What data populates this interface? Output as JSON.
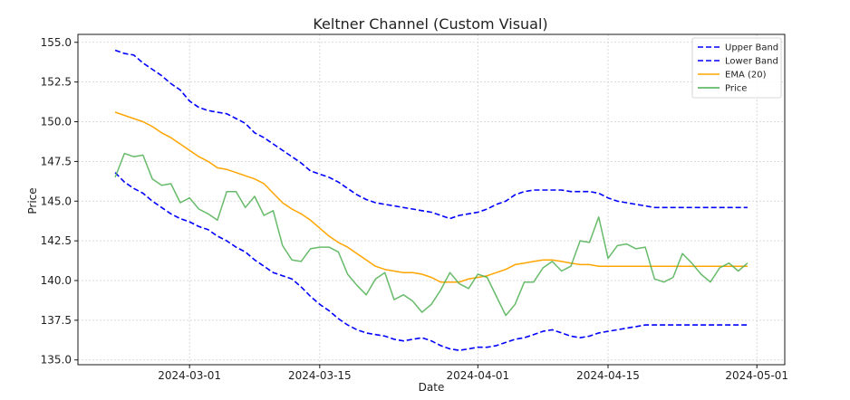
{
  "chart_data": {
    "type": "line",
    "title": "Keltner Channel (Custom Visual)",
    "xlabel": "Date",
    "ylabel": "Price",
    "x_range": [
      "2024-02-18",
      "2024-05-04"
    ],
    "ylim": [
      134.7,
      155.5
    ],
    "x_ticks": [
      "2024-03-01",
      "2024-03-15",
      "2024-04-01",
      "2024-04-15",
      "2024-05-01"
    ],
    "y_ticks": [
      135.0,
      137.5,
      140.0,
      142.5,
      145.0,
      147.5,
      150.0,
      152.5,
      155.0
    ],
    "grid": true,
    "legend_position": "top-right",
    "dates": [
      "2024-02-22",
      "2024-02-23",
      "2024-02-24",
      "2024-02-25",
      "2024-02-26",
      "2024-02-27",
      "2024-02-28",
      "2024-02-29",
      "2024-03-01",
      "2024-03-02",
      "2024-03-03",
      "2024-03-04",
      "2024-03-05",
      "2024-03-06",
      "2024-03-07",
      "2024-03-08",
      "2024-03-09",
      "2024-03-10",
      "2024-03-11",
      "2024-03-12",
      "2024-03-13",
      "2024-03-14",
      "2024-03-15",
      "2024-03-16",
      "2024-03-17",
      "2024-03-18",
      "2024-03-19",
      "2024-03-20",
      "2024-03-21",
      "2024-03-22",
      "2024-03-23",
      "2024-03-24",
      "2024-03-25",
      "2024-03-26",
      "2024-03-27",
      "2024-03-28",
      "2024-03-29",
      "2024-03-30",
      "2024-03-31",
      "2024-04-01",
      "2024-04-02",
      "2024-04-03",
      "2024-04-04",
      "2024-04-05",
      "2024-04-06",
      "2024-04-07",
      "2024-04-08",
      "2024-04-09",
      "2024-04-10",
      "2024-04-11",
      "2024-04-12",
      "2024-04-13",
      "2024-04-14",
      "2024-04-15",
      "2024-04-16",
      "2024-04-17",
      "2024-04-18",
      "2024-04-19",
      "2024-04-20",
      "2024-04-21",
      "2024-04-22",
      "2024-04-23",
      "2024-04-24",
      "2024-04-25",
      "2024-04-26",
      "2024-04-27",
      "2024-04-28",
      "2024-04-29",
      "2024-04-30"
    ],
    "series": [
      {
        "name": "Upper Band",
        "color": "#0000ff",
        "style": "dashed",
        "values": [
          154.5,
          154.3,
          154.2,
          153.7,
          153.3,
          152.9,
          152.4,
          152.0,
          151.3,
          150.9,
          150.7,
          150.6,
          150.5,
          150.2,
          149.9,
          149.3,
          149.0,
          148.6,
          148.2,
          147.8,
          147.4,
          146.9,
          146.7,
          146.5,
          146.2,
          145.8,
          145.4,
          145.1,
          144.9,
          144.8,
          144.7,
          144.6,
          144.5,
          144.4,
          144.3,
          144.1,
          143.9,
          144.1,
          144.2,
          144.3,
          144.5,
          144.8,
          145.0,
          145.4,
          145.6,
          145.7,
          145.7,
          145.7,
          145.7,
          145.6,
          145.6,
          145.6,
          145.5,
          145.2,
          145.0,
          144.9,
          144.8,
          144.7,
          144.6,
          144.6,
          144.6,
          144.6,
          144.6,
          144.6,
          144.6,
          144.6,
          144.6,
          144.6,
          144.6
        ]
      },
      {
        "name": "Lower Band",
        "color": "#0000ff",
        "style": "dashed",
        "values": [
          146.8,
          146.2,
          145.8,
          145.5,
          145.0,
          144.6,
          144.2,
          143.9,
          143.7,
          143.4,
          143.2,
          142.8,
          142.5,
          142.1,
          141.8,
          141.3,
          140.9,
          140.5,
          140.3,
          140.1,
          139.6,
          139.0,
          138.5,
          138.1,
          137.6,
          137.2,
          136.9,
          136.7,
          136.6,
          136.5,
          136.3,
          136.2,
          136.3,
          136.4,
          136.2,
          135.9,
          135.7,
          135.6,
          135.7,
          135.8,
          135.8,
          135.9,
          136.1,
          136.3,
          136.4,
          136.6,
          136.8,
          136.9,
          136.7,
          136.5,
          136.4,
          136.5,
          136.7,
          136.8,
          136.9,
          137.0,
          137.1,
          137.2,
          137.2,
          137.2,
          137.2,
          137.2,
          137.2,
          137.2,
          137.2,
          137.2,
          137.2,
          137.2,
          137.2
        ]
      },
      {
        "name": "EMA (20)",
        "color": "#ffa500",
        "style": "solid",
        "values": [
          150.6,
          150.4,
          150.2,
          150.0,
          149.7,
          149.3,
          149.0,
          148.6,
          148.2,
          147.8,
          147.5,
          147.1,
          147.0,
          146.8,
          146.6,
          146.4,
          146.1,
          145.5,
          144.9,
          144.5,
          144.2,
          143.8,
          143.3,
          142.8,
          142.4,
          142.1,
          141.7,
          141.3,
          140.9,
          140.7,
          140.6,
          140.5,
          140.5,
          140.4,
          140.2,
          139.9,
          139.9,
          139.9,
          140.1,
          140.2,
          140.3,
          140.5,
          140.7,
          141.0,
          141.1,
          141.2,
          141.3,
          141.3,
          141.2,
          141.1,
          141.0,
          141.0,
          140.9,
          140.9,
          140.9,
          140.9,
          140.9,
          140.9,
          140.9,
          140.9,
          140.9,
          140.9,
          140.9,
          140.9,
          140.9,
          140.9,
          140.9,
          140.9,
          140.9
        ]
      },
      {
        "name": "Price",
        "color": "#4caf50",
        "style": "solid",
        "values": [
          146.5,
          148.0,
          147.8,
          147.9,
          146.4,
          146.0,
          146.1,
          144.9,
          145.2,
          144.5,
          144.2,
          143.8,
          145.6,
          145.6,
          144.6,
          145.3,
          144.1,
          144.4,
          142.2,
          141.3,
          141.2,
          142.0,
          142.1,
          142.1,
          141.8,
          140.4,
          139.7,
          139.1,
          140.1,
          140.5,
          138.8,
          139.1,
          138.7,
          138.0,
          138.5,
          139.4,
          140.5,
          139.8,
          139.5,
          140.4,
          140.2,
          139.0,
          137.8,
          138.5,
          139.9,
          139.9,
          140.8,
          141.2,
          140.6,
          140.9,
          142.5,
          142.4,
          144.0,
          141.4,
          142.2,
          142.3,
          142.0,
          142.1,
          140.1,
          139.9,
          140.2,
          141.7,
          141.1,
          140.4,
          139.9,
          140.8,
          141.1,
          140.6,
          141.1
        ]
      }
    ]
  }
}
